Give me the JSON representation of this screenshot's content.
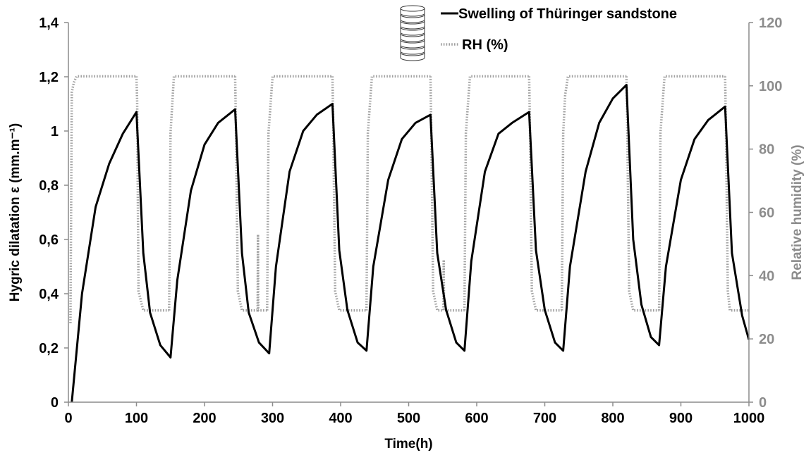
{
  "chart_data": {
    "type": "line",
    "xlabel": "Time(h)",
    "ylabel": "Hygric dilatation ε (mm.m⁻¹)",
    "y2label": "Relative humidity (%)",
    "xlim": [
      0,
      1000
    ],
    "ylim": [
      0,
      1.4
    ],
    "y2lim": [
      0,
      120
    ],
    "x_ticks": [
      "0",
      "100",
      "200",
      "300",
      "400",
      "500",
      "600",
      "700",
      "800",
      "900",
      "1000"
    ],
    "y_ticks": [
      "0",
      "0,2",
      "0,4",
      "0,6",
      "0,8",
      "1",
      "1,2",
      "1,4"
    ],
    "y2_ticks": [
      "0",
      "20",
      "40",
      "60",
      "80",
      "100",
      "120"
    ],
    "grid": false,
    "legend_position": "top-right",
    "series": [
      {
        "name": "Swelling of Thüringer sandstone",
        "axis": "left",
        "color": "#000000",
        "style": "solid",
        "x": [
          5,
          20,
          40,
          60,
          80,
          100,
          110,
          120,
          135,
          150,
          160,
          180,
          200,
          220,
          245,
          255,
          265,
          280,
          295,
          305,
          325,
          345,
          365,
          388,
          398,
          410,
          425,
          438,
          448,
          470,
          490,
          510,
          532,
          542,
          555,
          570,
          582,
          592,
          612,
          632,
          652,
          677,
          687,
          700,
          715,
          727,
          737,
          760,
          780,
          800,
          820,
          830,
          842,
          856,
          868,
          878,
          900,
          920,
          940,
          965,
          975,
          990,
          1000
        ],
        "y": [
          0.0,
          0.4,
          0.72,
          0.88,
          0.99,
          1.07,
          0.55,
          0.33,
          0.21,
          0.165,
          0.45,
          0.78,
          0.95,
          1.03,
          1.08,
          0.55,
          0.33,
          0.22,
          0.18,
          0.5,
          0.85,
          1.0,
          1.06,
          1.1,
          0.56,
          0.34,
          0.22,
          0.19,
          0.5,
          0.82,
          0.97,
          1.03,
          1.06,
          0.55,
          0.34,
          0.22,
          0.19,
          0.52,
          0.85,
          0.99,
          1.03,
          1.07,
          0.56,
          0.34,
          0.22,
          0.19,
          0.5,
          0.85,
          1.03,
          1.12,
          1.17,
          0.6,
          0.36,
          0.24,
          0.21,
          0.5,
          0.82,
          0.97,
          1.04,
          1.09,
          0.55,
          0.32,
          0.23
        ]
      },
      {
        "name": "RH (%)",
        "axis": "right",
        "color": "#a0a0a0",
        "style": "dotted",
        "segments": [
          {
            "x": [
              3,
              5,
              8,
              12,
              100
            ],
            "y": [
              25,
              98,
              101,
              103,
              103
            ]
          },
          {
            "x": [
              100,
              101,
              103,
              110,
              148
            ],
            "y": [
              103,
              95,
              35,
              29,
              29
            ]
          },
          {
            "x": [
              148,
              150,
              155,
              245
            ],
            "y": [
              29,
              85,
              103,
              103
            ]
          },
          {
            "x": [
              245,
              246,
              249,
              255,
              278,
              278.5,
              279,
              280,
              292
            ],
            "y": [
              103,
              90,
              35,
              29,
              29,
              53,
              29,
              29,
              29
            ]
          },
          {
            "x": [
              292,
              294,
              300,
              388
            ],
            "y": [
              29,
              85,
              103,
              103
            ]
          },
          {
            "x": [
              388,
              389,
              392,
              398,
              438
            ],
            "y": [
              103,
              90,
              35,
              29,
              29
            ]
          },
          {
            "x": [
              438,
              440,
              446,
              532
            ],
            "y": [
              29,
              85,
              103,
              103
            ]
          },
          {
            "x": [
              532,
              533,
              536,
              542,
              551,
              551.5,
              552,
              553,
              582
            ],
            "y": [
              103,
              90,
              35,
              29,
              29,
              45,
              29,
              29,
              29
            ]
          },
          {
            "x": [
              582,
              584,
              590,
              677
            ],
            "y": [
              29,
              85,
              103,
              103
            ]
          },
          {
            "x": [
              677,
              678,
              681,
              687,
              725
            ],
            "y": [
              103,
              90,
              35,
              29,
              29
            ]
          },
          {
            "x": [
              725,
              727,
              730,
              734,
              820
            ],
            "y": [
              29,
              85,
              97,
              103,
              103
            ]
          },
          {
            "x": [
              820,
              821,
              824,
              830,
              868
            ],
            "y": [
              103,
              90,
              35,
              29,
              29
            ]
          },
          {
            "x": [
              868,
              870,
              876,
              965
            ],
            "y": [
              29,
              85,
              103,
              103
            ]
          },
          {
            "x": [
              965,
              966,
              969,
              972,
              1000
            ],
            "y": [
              103,
              90,
              35,
              29,
              29
            ]
          }
        ]
      }
    ]
  }
}
